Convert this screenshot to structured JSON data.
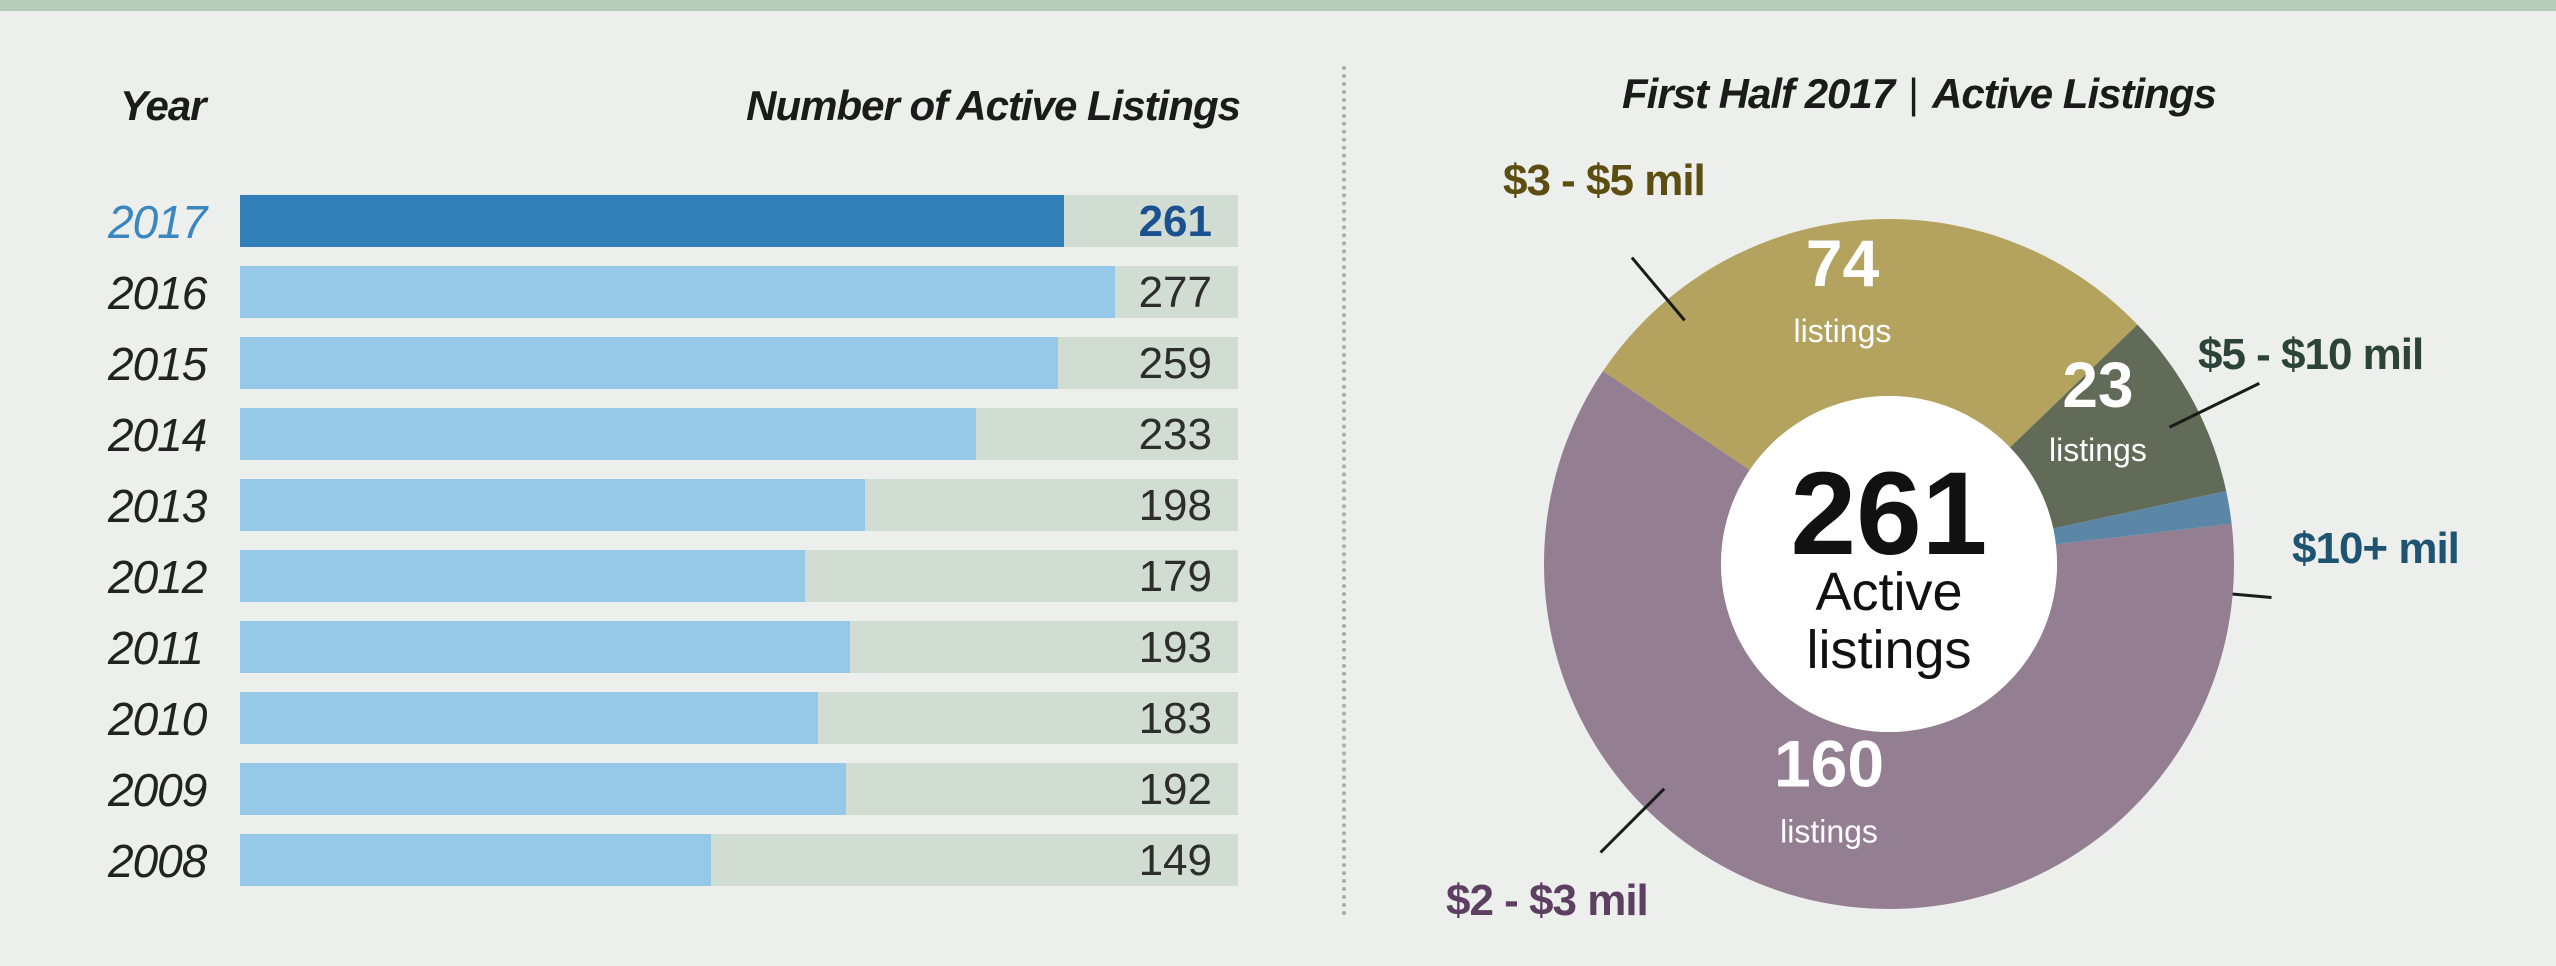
{
  "headers": {
    "year": "Year",
    "count": "Number of Active Listings"
  },
  "chart_data": [
    {
      "type": "bar",
      "orientation": "horizontal",
      "categories": [
        "2017",
        "2016",
        "2015",
        "2014",
        "2013",
        "2012",
        "2011",
        "2010",
        "2009",
        "2008"
      ],
      "values": [
        261,
        277,
        259,
        233,
        198,
        179,
        193,
        183,
        192,
        149
      ],
      "xlim": [
        0,
        316
      ],
      "highlight": "2017",
      "colors": {
        "bar": "#96c9e8",
        "highlight": "#327fba",
        "track": "#d1dcd2"
      }
    },
    {
      "type": "pie",
      "donut": true,
      "title_left": "First Half 2017",
      "title_right": "Active Listings",
      "title_separator": "|",
      "center_value": "261",
      "center_label_1": "Active",
      "center_label_2": "listings",
      "unit": "listings",
      "slices": [
        {
          "label": "$3 - $5 mil",
          "value": 74,
          "value_text": "74",
          "color": "#b3a35e",
          "label_color": "#5c4d10"
        },
        {
          "label": "$5 - $10 mil",
          "value": 23,
          "value_text": "23",
          "color": "#626b58",
          "label_color": "#2c4338"
        },
        {
          "label": "$10+ mil",
          "value": 4,
          "value_text": "4",
          "color": "#5b86a6",
          "label_color": "#1e5472"
        },
        {
          "label": "$2 - $3 mil",
          "value": 160,
          "value_text": "160",
          "color": "#937e92",
          "label_color": "#5d3f61"
        }
      ]
    }
  ]
}
